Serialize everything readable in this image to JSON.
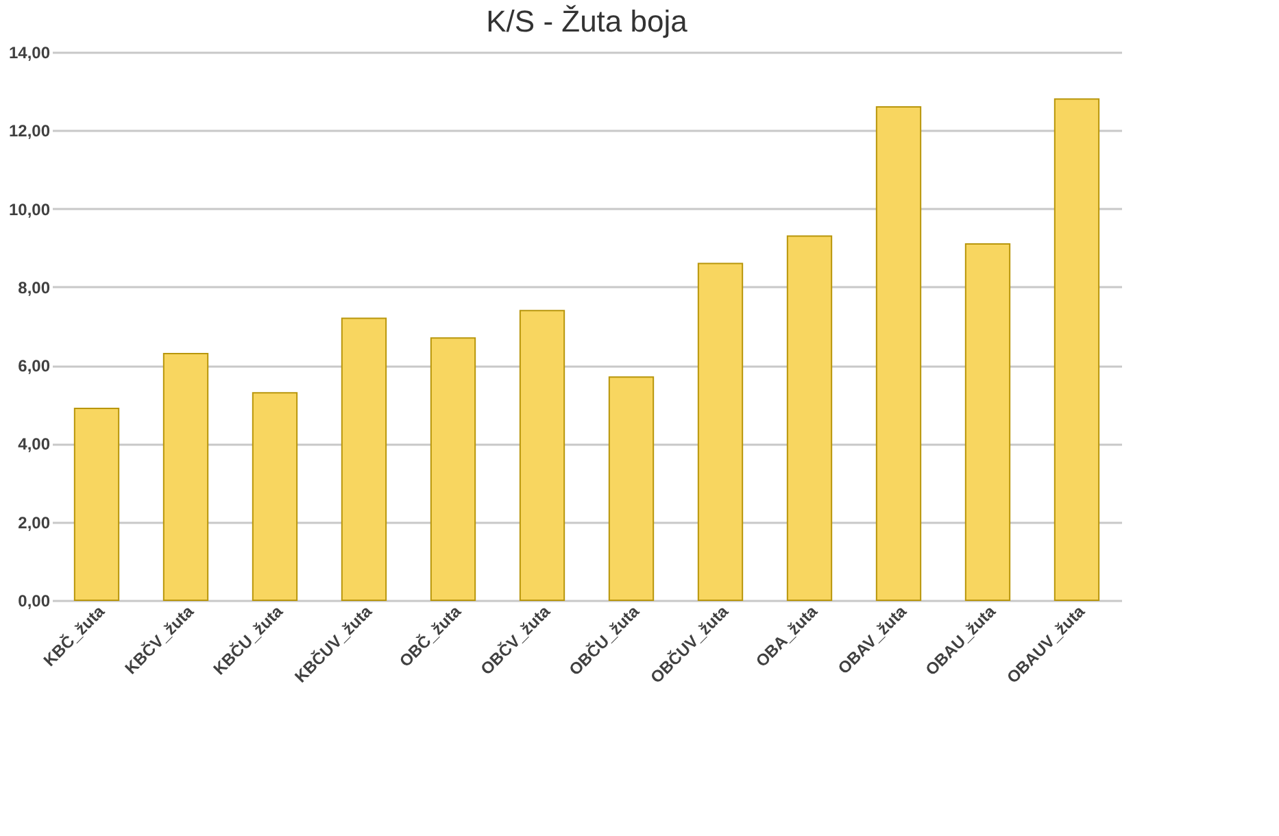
{
  "chart_data": {
    "type": "bar",
    "title": "K/S - Žuta boja",
    "categories": [
      "KBČ_žuta",
      "KBČV_žuta",
      "KBČU_žuta",
      "KBČUV_žuta",
      "OBČ_žuta",
      "OBČV_žuta",
      "OBČU_žuta",
      "OBČUV_žuta",
      "OBA_žuta",
      "OBAV_žuta",
      "OBAU_žuta",
      "OBAUV_žuta"
    ],
    "values": [
      4.9,
      6.3,
      5.3,
      7.2,
      6.7,
      7.4,
      5.7,
      8.6,
      9.3,
      12.6,
      9.1,
      12.8
    ],
    "color": "#f8d660",
    "ylim": [
      0,
      14
    ],
    "yticks": [
      {
        "value": 0,
        "label": "0,00"
      },
      {
        "value": 2,
        "label": "2,00"
      },
      {
        "value": 4,
        "label": "4,00"
      },
      {
        "value": 6,
        "label": "6,00"
      },
      {
        "value": 8,
        "label": "8,00"
      },
      {
        "value": 10,
        "label": "10,00"
      },
      {
        "value": 12,
        "label": "12,00"
      },
      {
        "value": 14,
        "label": "14,00"
      }
    ],
    "grid": "y"
  }
}
